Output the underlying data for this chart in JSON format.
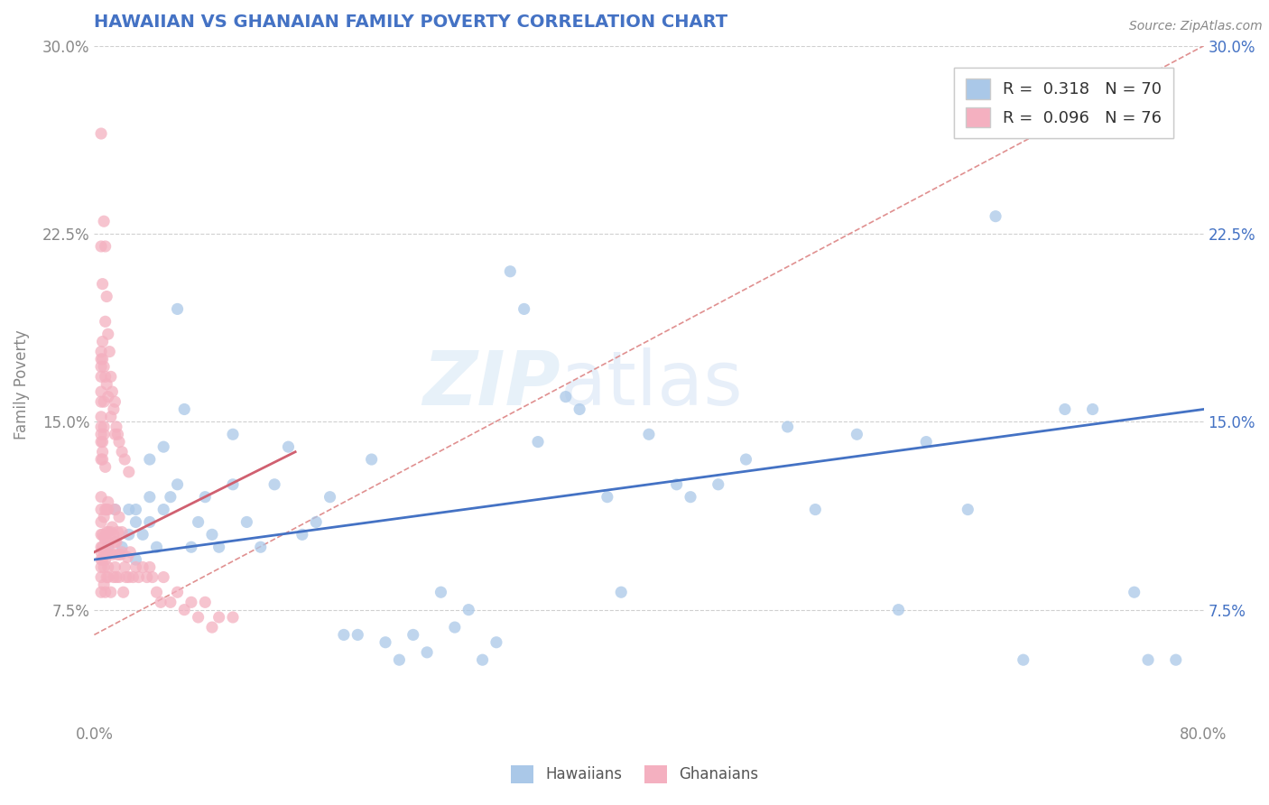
{
  "title": "HAWAIIAN VS GHANAIAN FAMILY POVERTY CORRELATION CHART",
  "source": "Source: ZipAtlas.com",
  "ylabel": "Family Poverty",
  "xlim": [
    0.0,
    0.8
  ],
  "ylim": [
    0.03,
    0.3
  ],
  "xtick_positions": [
    0.0,
    0.8
  ],
  "xtick_labels": [
    "0.0%",
    "80.0%"
  ],
  "ytick_vals": [
    0.075,
    0.15,
    0.225,
    0.3
  ],
  "ytick_labels": [
    "7.5%",
    "15.0%",
    "22.5%",
    "30.0%"
  ],
  "title_color": "#4472c4",
  "grid_color": "#d0d0d0",
  "hawaiian_color": "#aac8e8",
  "ghanaian_color": "#f4b0c0",
  "hawaiian_line_color": "#4472c4",
  "ghanaian_line_color": "#d06070",
  "dashed_line_color": "#e09090",
  "R_hawaiian": 0.318,
  "N_hawaiian": 70,
  "R_ghanaian": 0.096,
  "N_ghanaian": 76,
  "watermark_zip": "ZIP",
  "watermark_atlas": "atlas",
  "legend_label_hawaiians": "Hawaiians",
  "legend_label_ghanaians": "Ghanaians",
  "hawaiian_x": [
    0.01,
    0.015,
    0.02,
    0.025,
    0.025,
    0.03,
    0.03,
    0.03,
    0.035,
    0.04,
    0.04,
    0.045,
    0.05,
    0.055,
    0.06,
    0.065,
    0.07,
    0.075,
    0.08,
    0.085,
    0.09,
    0.1,
    0.1,
    0.11,
    0.12,
    0.13,
    0.14,
    0.15,
    0.16,
    0.17,
    0.18,
    0.19,
    0.2,
    0.21,
    0.22,
    0.23,
    0.24,
    0.25,
    0.26,
    0.27,
    0.28,
    0.29,
    0.3,
    0.31,
    0.32,
    0.34,
    0.35,
    0.37,
    0.38,
    0.4,
    0.42,
    0.43,
    0.45,
    0.47,
    0.5,
    0.52,
    0.55,
    0.58,
    0.6,
    0.63,
    0.65,
    0.67,
    0.7,
    0.72,
    0.75,
    0.76,
    0.78,
    0.04,
    0.05,
    0.06
  ],
  "hawaiian_y": [
    0.1,
    0.115,
    0.1,
    0.105,
    0.115,
    0.095,
    0.11,
    0.115,
    0.105,
    0.11,
    0.12,
    0.1,
    0.115,
    0.12,
    0.125,
    0.155,
    0.1,
    0.11,
    0.12,
    0.105,
    0.1,
    0.125,
    0.145,
    0.11,
    0.1,
    0.125,
    0.14,
    0.105,
    0.11,
    0.12,
    0.065,
    0.065,
    0.135,
    0.062,
    0.055,
    0.065,
    0.058,
    0.082,
    0.068,
    0.075,
    0.055,
    0.062,
    0.21,
    0.195,
    0.142,
    0.16,
    0.155,
    0.12,
    0.082,
    0.145,
    0.125,
    0.12,
    0.125,
    0.135,
    0.148,
    0.115,
    0.145,
    0.075,
    0.142,
    0.115,
    0.232,
    0.055,
    0.155,
    0.155,
    0.082,
    0.055,
    0.055,
    0.135,
    0.14,
    0.195
  ],
  "ghanaian_x": [
    0.005,
    0.005,
    0.005,
    0.005,
    0.005,
    0.005,
    0.005,
    0.005,
    0.005,
    0.005,
    0.006,
    0.006,
    0.006,
    0.007,
    0.007,
    0.007,
    0.007,
    0.007,
    0.008,
    0.008,
    0.008,
    0.008,
    0.009,
    0.009,
    0.009,
    0.009,
    0.01,
    0.01,
    0.01,
    0.01,
    0.01,
    0.01,
    0.012,
    0.012,
    0.012,
    0.013,
    0.013,
    0.014,
    0.014,
    0.015,
    0.015,
    0.015,
    0.016,
    0.016,
    0.017,
    0.017,
    0.018,
    0.018,
    0.019,
    0.02,
    0.02,
    0.021,
    0.022,
    0.023,
    0.024,
    0.025,
    0.026,
    0.028,
    0.03,
    0.032,
    0.035,
    0.038,
    0.04,
    0.042,
    0.045,
    0.048,
    0.05,
    0.055,
    0.06,
    0.065,
    0.07,
    0.075,
    0.08,
    0.085,
    0.09,
    0.1
  ],
  "ghanaian_y": [
    0.1,
    0.105,
    0.11,
    0.095,
    0.115,
    0.088,
    0.098,
    0.092,
    0.12,
    0.082,
    0.1,
    0.105,
    0.095,
    0.098,
    0.104,
    0.092,
    0.085,
    0.112,
    0.095,
    0.103,
    0.115,
    0.082,
    0.098,
    0.106,
    0.088,
    0.115,
    0.092,
    0.102,
    0.106,
    0.088,
    0.115,
    0.118,
    0.098,
    0.106,
    0.082,
    0.097,
    0.108,
    0.088,
    0.105,
    0.092,
    0.102,
    0.115,
    0.088,
    0.102,
    0.097,
    0.106,
    0.088,
    0.112,
    0.097,
    0.098,
    0.106,
    0.082,
    0.092,
    0.088,
    0.096,
    0.088,
    0.098,
    0.088,
    0.092,
    0.088,
    0.092,
    0.088,
    0.092,
    0.088,
    0.082,
    0.078,
    0.088,
    0.078,
    0.082,
    0.075,
    0.078,
    0.072,
    0.078,
    0.068,
    0.072,
    0.072
  ],
  "ghanaian_high_x": [
    0.005,
    0.005,
    0.006,
    0.007,
    0.008,
    0.008,
    0.009,
    0.01,
    0.011,
    0.012,
    0.013,
    0.014,
    0.015,
    0.016,
    0.017,
    0.018,
    0.02,
    0.022,
    0.025,
    0.015,
    0.012,
    0.008,
    0.006,
    0.01,
    0.009,
    0.007,
    0.006,
    0.007,
    0.005,
    0.005,
    0.005,
    0.005,
    0.005,
    0.005,
    0.005,
    0.005,
    0.005,
    0.005,
    0.005,
    0.006,
    0.006,
    0.007,
    0.007,
    0.006,
    0.008
  ],
  "ghanaian_high_y": [
    0.265,
    0.22,
    0.205,
    0.23,
    0.22,
    0.19,
    0.2,
    0.185,
    0.178,
    0.168,
    0.162,
    0.155,
    0.158,
    0.148,
    0.145,
    0.142,
    0.138,
    0.135,
    0.13,
    0.145,
    0.152,
    0.168,
    0.175,
    0.16,
    0.165,
    0.172,
    0.182,
    0.158,
    0.175,
    0.178,
    0.148,
    0.152,
    0.158,
    0.162,
    0.168,
    0.172,
    0.142,
    0.145,
    0.135,
    0.138,
    0.142,
    0.145,
    0.148,
    0.135,
    0.132
  ]
}
